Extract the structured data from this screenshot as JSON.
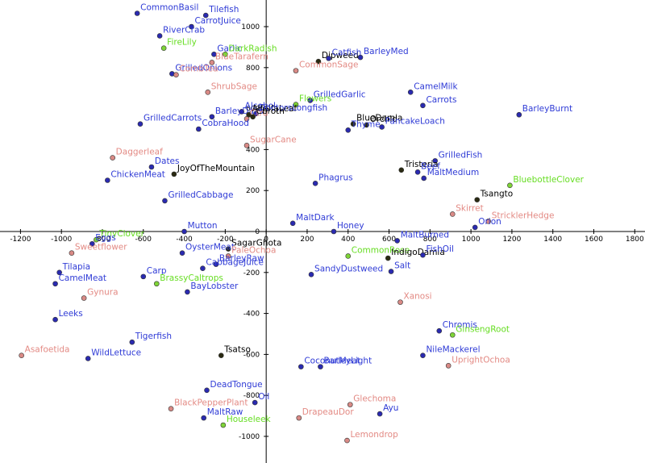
{
  "chart_data": {
    "type": "scatter",
    "xlim": [
      -1300,
      1850
    ],
    "ylim": [
      -1130,
      1130
    ],
    "x_ticks": [
      -1200,
      -1000,
      -800,
      -600,
      -400,
      -200,
      0,
      200,
      400,
      600,
      800,
      1000,
      1200,
      1400,
      1600,
      1800
    ],
    "y_ticks": [
      -1000,
      -800,
      -600,
      -400,
      -200,
      0,
      200,
      400,
      600,
      800,
      1000
    ],
    "grid": false,
    "colors": {
      "blue_point": "#2a2ab0",
      "blue_label": "#2f3bd6",
      "pink_point": "#d98a86",
      "pink_label": "#e38a84",
      "green_point": "#7ed437",
      "green_label": "#66dd22",
      "black_point": "#2a2a12",
      "black_label": "#000000"
    },
    "points": [
      {
        "label": "CommonBasil",
        "x": -630,
        "y": 1065,
        "group": "blue"
      },
      {
        "label": "Tilefish",
        "x": -295,
        "y": 1055,
        "group": "blue"
      },
      {
        "label": "CarrotJuice",
        "x": -365,
        "y": 1000,
        "group": "blue"
      },
      {
        "label": "RiverCrab",
        "x": -520,
        "y": 955,
        "group": "blue"
      },
      {
        "label": "FireLily",
        "x": -500,
        "y": 895,
        "group": "green"
      },
      {
        "label": "Garlic",
        "x": -255,
        "y": 865,
        "group": "blue"
      },
      {
        "label": "DarkRadish",
        "x": -200,
        "y": 865,
        "group": "green"
      },
      {
        "label": "BlueTarafern",
        "x": -265,
        "y": 825,
        "group": "pink"
      },
      {
        "label": "GrilledOnions",
        "x": -460,
        "y": 770,
        "group": "blue"
      },
      {
        "label": "CombTea",
        "x": -440,
        "y": 765,
        "group": "pink"
      },
      {
        "label": "ShrubSage",
        "x": -285,
        "y": 680,
        "group": "pink"
      },
      {
        "label": "Dipweed",
        "x": 255,
        "y": 830,
        "group": "black"
      },
      {
        "label": "Catfish",
        "x": 305,
        "y": 845,
        "group": "blue"
      },
      {
        "label": "BarleyMed",
        "x": 460,
        "y": 850,
        "group": "blue"
      },
      {
        "label": "CommonSage",
        "x": 145,
        "y": 785,
        "group": "pink"
      },
      {
        "label": "GrilledGarlic",
        "x": 215,
        "y": 640,
        "group": "blue"
      },
      {
        "label": "Flowers",
        "x": 145,
        "y": 620,
        "group": "green"
      },
      {
        "label": "CamelMilk",
        "x": 705,
        "y": 680,
        "group": "blue"
      },
      {
        "label": "Carrots",
        "x": 765,
        "y": 615,
        "group": "blue"
      },
      {
        "label": "BarleyDays",
        "x": -265,
        "y": 560,
        "group": "blue"
      },
      {
        "label": "Alcohol",
        "x": -120,
        "y": 585,
        "group": "blue"
      },
      {
        "label": "AlfalfaLeaf",
        "x": -85,
        "y": 570,
        "group": "black"
      },
      {
        "label": "DoctorsLongfish",
        "x": -50,
        "y": 575,
        "group": "blue"
      },
      {
        "label": "Ctru",
        "x": -95,
        "y": 550,
        "group": "pink"
      },
      {
        "label": "Cbroth",
        "x": -65,
        "y": 560,
        "group": "black"
      },
      {
        "label": "GrilledCarrots",
        "x": -615,
        "y": 525,
        "group": "blue"
      },
      {
        "label": "CobraHood",
        "x": -330,
        "y": 500,
        "group": "blue"
      },
      {
        "label": "BlueDamia",
        "x": 425,
        "y": 525,
        "group": "black"
      },
      {
        "label": "Orchid",
        "x": 490,
        "y": 520,
        "group": "black"
      },
      {
        "label": "Thyme",
        "x": 400,
        "y": 495,
        "group": "blue"
      },
      {
        "label": "PancakeLoach",
        "x": 565,
        "y": 510,
        "group": "blue"
      },
      {
        "label": "BarleyBurnt",
        "x": 1235,
        "y": 570,
        "group": "blue"
      },
      {
        "label": "SugarCane",
        "x": -95,
        "y": 420,
        "group": "pink"
      },
      {
        "label": "Daggerleaf",
        "x": -750,
        "y": 360,
        "group": "pink"
      },
      {
        "label": "Dates",
        "x": -560,
        "y": 315,
        "group": "blue"
      },
      {
        "label": "JoyOfTheMountain",
        "x": -450,
        "y": 280,
        "group": "black"
      },
      {
        "label": "ChickenMeat",
        "x": -775,
        "y": 250,
        "group": "blue"
      },
      {
        "label": "GrilledCabbage",
        "x": -495,
        "y": 150,
        "group": "blue"
      },
      {
        "label": "GrilledFish",
        "x": 825,
        "y": 345,
        "group": "blue"
      },
      {
        "label": "Tristeria",
        "x": 660,
        "y": 300,
        "group": "black"
      },
      {
        "label": "Beef",
        "x": 740,
        "y": 290,
        "group": "blue"
      },
      {
        "label": "MaltMedium",
        "x": 770,
        "y": 260,
        "group": "blue"
      },
      {
        "label": "Phagrus",
        "x": 240,
        "y": 235,
        "group": "blue"
      },
      {
        "label": "BluebottleClover",
        "x": 1190,
        "y": 225,
        "group": "green"
      },
      {
        "label": "Tsangto",
        "x": 1030,
        "y": 155,
        "group": "black"
      },
      {
        "label": "Skirret",
        "x": 910,
        "y": 85,
        "group": "pink"
      },
      {
        "label": "StricklerHedge",
        "x": 1085,
        "y": 50,
        "group": "pink"
      },
      {
        "label": "Orion",
        "x": 1020,
        "y": 20,
        "group": "blue"
      },
      {
        "label": "MaltDark",
        "x": 130,
        "y": 40,
        "group": "blue"
      },
      {
        "label": "Honey",
        "x": 330,
        "y": 0,
        "group": "blue"
      },
      {
        "label": "Mutton",
        "x": -400,
        "y": 0,
        "group": "blue"
      },
      {
        "label": "MaltBurned",
        "x": 640,
        "y": -45,
        "group": "blue"
      },
      {
        "label": "TinyClover",
        "x": -830,
        "y": -40,
        "group": "green"
      },
      {
        "label": "Eggs",
        "x": -850,
        "y": -60,
        "group": "blue"
      },
      {
        "label": "Sweetflower",
        "x": -950,
        "y": -105,
        "group": "pink"
      },
      {
        "label": "SagarGhota",
        "x": -185,
        "y": -85,
        "group": "black"
      },
      {
        "label": "OysterMeat",
        "x": -410,
        "y": -105,
        "group": "blue"
      },
      {
        "label": "PaleOchoa",
        "x": -185,
        "y": -120,
        "group": "pink"
      },
      {
        "label": "CommonRose",
        "x": 400,
        "y": -120,
        "group": "green"
      },
      {
        "label": "IndigoDamia",
        "x": 595,
        "y": -130,
        "group": "black"
      },
      {
        "label": "FishOil",
        "x": 765,
        "y": -115,
        "group": "blue"
      },
      {
        "label": "BarleyRaw",
        "x": -245,
        "y": -160,
        "group": "blue"
      },
      {
        "label": "CabbageJuice",
        "x": -310,
        "y": -180,
        "group": "blue"
      },
      {
        "label": "Carp",
        "x": -600,
        "y": -220,
        "group": "blue"
      },
      {
        "label": "BrassyCaltrops",
        "x": -535,
        "y": -255,
        "group": "green"
      },
      {
        "label": "BayLobster",
        "x": -385,
        "y": -295,
        "group": "blue"
      },
      {
        "label": "Salt",
        "x": 610,
        "y": -195,
        "group": "blue"
      },
      {
        "label": "SandyDustweed",
        "x": 220,
        "y": -210,
        "group": "blue"
      },
      {
        "label": "Tilapia",
        "x": -1010,
        "y": -200,
        "group": "blue"
      },
      {
        "label": "CamelMeat",
        "x": -1030,
        "y": -255,
        "group": "blue"
      },
      {
        "label": "Gynura",
        "x": -890,
        "y": -325,
        "group": "pink"
      },
      {
        "label": "Xanosi",
        "x": 655,
        "y": -345,
        "group": "pink"
      },
      {
        "label": "Leeks",
        "x": -1030,
        "y": -430,
        "group": "blue"
      },
      {
        "label": "Chromis",
        "x": 845,
        "y": -485,
        "group": "blue"
      },
      {
        "label": "GinsengRoot",
        "x": 910,
        "y": -505,
        "group": "green"
      },
      {
        "label": "Tigerfish",
        "x": -655,
        "y": -540,
        "group": "blue"
      },
      {
        "label": "Asafoetida",
        "x": -1195,
        "y": -605,
        "group": "pink"
      },
      {
        "label": "WildLettuce",
        "x": -870,
        "y": -620,
        "group": "blue"
      },
      {
        "label": "Tsatso",
        "x": -220,
        "y": -605,
        "group": "black"
      },
      {
        "label": "NileMackerel",
        "x": 765,
        "y": -605,
        "group": "blue"
      },
      {
        "label": "UprightOchoa",
        "x": 890,
        "y": -655,
        "group": "pink"
      },
      {
        "label": "CoconutMeat",
        "x": 170,
        "y": -660,
        "group": "blue"
      },
      {
        "label": "BarleyLight",
        "x": 265,
        "y": -660,
        "group": "blue"
      },
      {
        "label": "DeadTongue",
        "x": -290,
        "y": -775,
        "group": "blue"
      },
      {
        "label": "Oil",
        "x": -55,
        "y": -835,
        "group": "blue"
      },
      {
        "label": "BlackPepperPlant",
        "x": -465,
        "y": -865,
        "group": "pink"
      },
      {
        "label": "MaltRaw",
        "x": -305,
        "y": -910,
        "group": "blue"
      },
      {
        "label": "Houseleek",
        "x": -210,
        "y": -945,
        "group": "green"
      },
      {
        "label": "Glechoma",
        "x": 410,
        "y": -845,
        "group": "pink"
      },
      {
        "label": "DrapeauDor",
        "x": 160,
        "y": -910,
        "group": "pink"
      },
      {
        "label": "Ayu",
        "x": 555,
        "y": -890,
        "group": "blue"
      },
      {
        "label": "Lemondrop",
        "x": 395,
        "y": -1020,
        "group": "pink"
      }
    ]
  }
}
